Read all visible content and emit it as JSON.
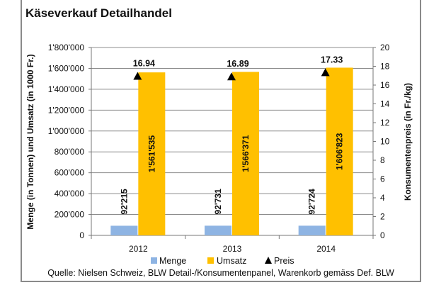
{
  "chart_data": {
    "type": "bar",
    "title": "Käseverkauf Detailhandel",
    "categories": [
      "2012",
      "2013",
      "2014"
    ],
    "series": [
      {
        "name": "Menge",
        "axis": "left",
        "kind": "bar",
        "color": "#8eb4e3",
        "values": [
          92215,
          92731,
          92724
        ],
        "labels": [
          "92'215",
          "92'731",
          "92'724"
        ]
      },
      {
        "name": "Umsatz",
        "axis": "left",
        "kind": "bar",
        "color": "#ffc000",
        "values": [
          1561535,
          1566371,
          1606823
        ],
        "labels": [
          "1'561'535",
          "1'566'371",
          "1'606'823"
        ]
      },
      {
        "name": "Preis",
        "axis": "right",
        "kind": "marker",
        "marker": "triangle",
        "color": "#000000",
        "values": [
          16.94,
          16.89,
          17.33
        ],
        "labels": [
          "16.94",
          "16.89",
          "17.33"
        ]
      }
    ],
    "ylabel": "Menge (in Tonnen) und Umsatz (in 1000 Fr.)",
    "y2label": "Konsumentenpreis (in Fr./kg)",
    "ylim": [
      0,
      1800000
    ],
    "y2lim": [
      0,
      20
    ],
    "yticks": [
      "0",
      "200'000",
      "400'000",
      "600'000",
      "800'000",
      "1'000'000",
      "1'200'000",
      "1'400'000",
      "1'600'000",
      "1'800'000"
    ],
    "y2ticks": [
      "0",
      "2",
      "4",
      "6",
      "8",
      "10",
      "12",
      "14",
      "16",
      "18",
      "20"
    ],
    "grid": true,
    "legend": "bottom",
    "source": "Quelle: Nielsen Schweiz, BLW Detail-/Konsumentenpanel, Warenkorb gemäss Def. BLW"
  }
}
